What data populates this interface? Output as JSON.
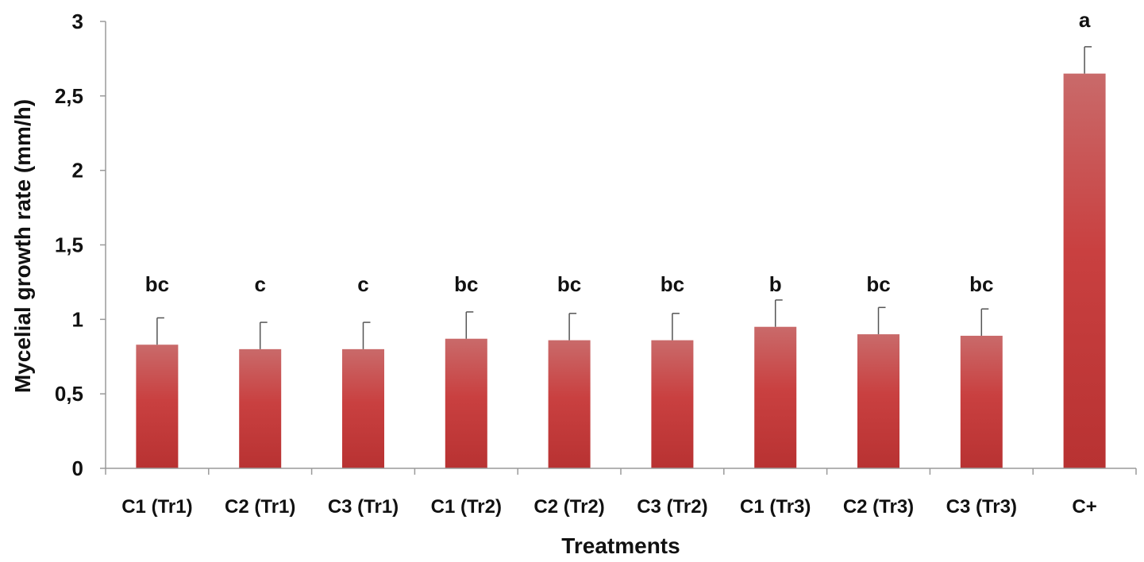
{
  "colors": {
    "bar_top": "#c96a6a",
    "bar_mid": "#c94040",
    "bar_bottom": "#b83232",
    "axis": "#9a9a9a",
    "error_bar": "#555555"
  },
  "chart_data": {
    "type": "bar",
    "xlabel": "Treatments",
    "ylabel": "Mycelial growth rate (mm/h)",
    "ylim": [
      0,
      3
    ],
    "yticks": [
      0,
      0.5,
      1,
      1.5,
      2,
      2.5,
      3
    ],
    "ytick_labels": [
      "0",
      "0,5",
      "1",
      "1,5",
      "2",
      "2,5",
      "3"
    ],
    "grid": false,
    "categories": [
      "C1 (Tr1)",
      "C2 (Tr1)",
      "C3 (Tr1)",
      "C1 (Tr2)",
      "C2 (Tr2)",
      "C3 (Tr2)",
      "C1 (Tr3)",
      "C2 (Tr3)",
      "C3 (Tr3)",
      "C+"
    ],
    "values": [
      0.83,
      0.8,
      0.8,
      0.87,
      0.86,
      0.86,
      0.95,
      0.9,
      0.89,
      2.65
    ],
    "errors": [
      0.18,
      0.18,
      0.18,
      0.18,
      0.18,
      0.18,
      0.18,
      0.18,
      0.18,
      0.18
    ],
    "significance_letters": [
      "bc",
      "c",
      "c",
      "bc",
      "bc",
      "bc",
      "b",
      "bc",
      "bc",
      "a"
    ]
  }
}
